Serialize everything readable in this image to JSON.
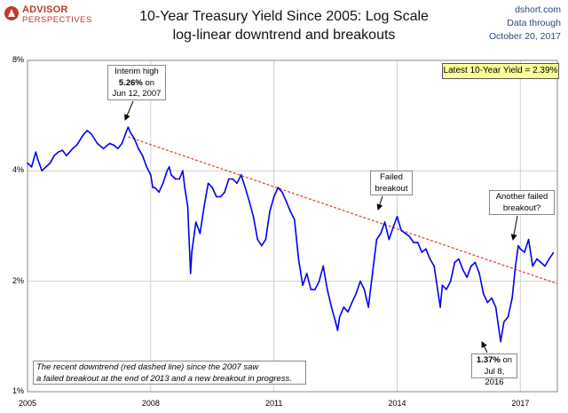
{
  "logo": {
    "line1": "ADVISOR",
    "line2": "PERSPECTIVES"
  },
  "header": {
    "title_line1": "10-Year Treasury Yield Since 2005: Log Scale",
    "title_line2": "log-linear downtrend and breakouts"
  },
  "source": {
    "site": "dshort.com",
    "line2": "Data through",
    "date": "October 20, 2017"
  },
  "latest_box": "Latest 10-Year Yield = 2.39%",
  "annotations": {
    "interim_high": {
      "line1": "Interim high",
      "value": "5.26%",
      "on": "on",
      "date": "Jun 12, 2007"
    },
    "failed_breakout": {
      "line1": "Failed",
      "line2": "breakout"
    },
    "another_failed": {
      "line1": "Another failed",
      "line2": "breakout?"
    },
    "low": {
      "value": "1.37%",
      "on": "on",
      "date": "Jul 8, 2016"
    }
  },
  "note": {
    "line1": "The recent downtrend (red dashed line) since the 2007 saw",
    "line2": "a failed breakout at the end of 2013  and a new breakout in progress."
  },
  "colors": {
    "series": "#0000ee",
    "trend": "#e03a2f",
    "grid": "#d0d0d0",
    "highlight_box": "#ffff99",
    "logo": "#c0392b"
  },
  "chart_data": {
    "type": "line",
    "title": "10-Year Treasury Yield Since 2005: Log Scale",
    "subtitle": "log-linear downtrend and breakouts",
    "y_scale": "log",
    "ylim": [
      1,
      8
    ],
    "xlim": [
      2005.0,
      2017.9
    ],
    "y_ticks": [
      {
        "value": 1,
        "label": "1%"
      },
      {
        "value": 2,
        "label": "2%"
      },
      {
        "value": 4,
        "label": "4%"
      },
      {
        "value": 8,
        "label": "8%"
      }
    ],
    "x_ticks": [
      {
        "value": 2005,
        "label": "2005"
      },
      {
        "value": 2008,
        "label": "2008"
      },
      {
        "value": 2011,
        "label": "2011"
      },
      {
        "value": 2014,
        "label": "2014"
      },
      {
        "value": 2017,
        "label": "2017"
      }
    ],
    "grid": true,
    "series": [
      {
        "x": [
          2005.0,
          2005.1,
          2005.2,
          2005.25,
          2005.35,
          2005.45,
          2005.55,
          2005.65,
          2005.75,
          2005.85,
          2005.95,
          2006.1,
          2006.2,
          2006.35,
          2006.45,
          2006.55,
          2006.7,
          2006.85,
          2007.0,
          2007.1,
          2007.2,
          2007.3,
          2007.4,
          2007.45,
          2007.5,
          2007.6,
          2007.7,
          2007.8,
          2007.9,
          2008.0,
          2008.05,
          2008.1,
          2008.2,
          2008.3,
          2008.4,
          2008.45,
          2008.5,
          2008.6,
          2008.7,
          2008.78,
          2008.83,
          2008.9,
          2008.97,
          2009.0,
          2009.1,
          2009.2,
          2009.3,
          2009.4,
          2009.5,
          2009.6,
          2009.7,
          2009.8,
          2009.9,
          2010.0,
          2010.1,
          2010.2,
          2010.3,
          2010.4,
          2010.5,
          2010.6,
          2010.7,
          2010.8,
          2010.9,
          2011.0,
          2011.1,
          2011.2,
          2011.3,
          2011.4,
          2011.5,
          2011.6,
          2011.7,
          2011.8,
          2011.9,
          2012.0,
          2012.1,
          2012.2,
          2012.3,
          2012.4,
          2012.5,
          2012.55,
          2012.6,
          2012.7,
          2012.8,
          2012.9,
          2013.0,
          2013.1,
          2013.2,
          2013.3,
          2013.4,
          2013.5,
          2013.6,
          2013.7,
          2013.8,
          2013.9,
          2014.0,
          2014.1,
          2014.2,
          2014.3,
          2014.4,
          2014.5,
          2014.6,
          2014.7,
          2014.8,
          2014.9,
          2015.0,
          2015.05,
          2015.1,
          2015.2,
          2015.3,
          2015.4,
          2015.5,
          2015.6,
          2015.7,
          2015.8,
          2015.9,
          2016.0,
          2016.1,
          2016.2,
          2016.3,
          2016.4,
          2016.52,
          2016.6,
          2016.7,
          2016.8,
          2016.88,
          2016.95,
          2017.0,
          2017.1,
          2017.2,
          2017.3,
          2017.4,
          2017.5,
          2017.6,
          2017.7,
          2017.8
        ],
        "values": [
          4.2,
          4.1,
          4.5,
          4.3,
          4.0,
          4.1,
          4.2,
          4.4,
          4.5,
          4.55,
          4.4,
          4.6,
          4.7,
          5.0,
          5.15,
          5.05,
          4.75,
          4.6,
          4.75,
          4.7,
          4.6,
          4.75,
          5.1,
          5.26,
          5.1,
          4.9,
          4.6,
          4.4,
          4.1,
          3.9,
          3.6,
          3.6,
          3.5,
          3.7,
          4.0,
          4.1,
          3.9,
          3.8,
          3.8,
          4.0,
          3.6,
          3.2,
          2.1,
          2.4,
          2.9,
          2.7,
          3.2,
          3.7,
          3.6,
          3.4,
          3.4,
          3.5,
          3.8,
          3.8,
          3.7,
          3.9,
          3.6,
          3.3,
          3.0,
          2.6,
          2.5,
          2.6,
          3.1,
          3.4,
          3.6,
          3.5,
          3.3,
          3.1,
          2.95,
          2.3,
          1.95,
          2.1,
          1.9,
          1.9,
          2.0,
          2.2,
          1.9,
          1.7,
          1.55,
          1.47,
          1.6,
          1.7,
          1.65,
          1.75,
          1.85,
          2.0,
          1.9,
          1.7,
          2.1,
          2.6,
          2.7,
          2.9,
          2.6,
          2.8,
          3.0,
          2.75,
          2.7,
          2.65,
          2.55,
          2.55,
          2.4,
          2.45,
          2.3,
          2.2,
          1.85,
          1.7,
          1.95,
          1.9,
          2.0,
          2.25,
          2.3,
          2.15,
          2.05,
          2.2,
          2.25,
          2.1,
          1.85,
          1.75,
          1.8,
          1.7,
          1.37,
          1.55,
          1.6,
          1.8,
          2.2,
          2.5,
          2.45,
          2.4,
          2.6,
          2.2,
          2.3,
          2.25,
          2.2,
          2.3,
          2.39
        ]
      },
      {
        "x": [
          2007.45,
          2017.9
        ],
        "values": [
          4.95,
          1.97
        ]
      }
    ]
  }
}
